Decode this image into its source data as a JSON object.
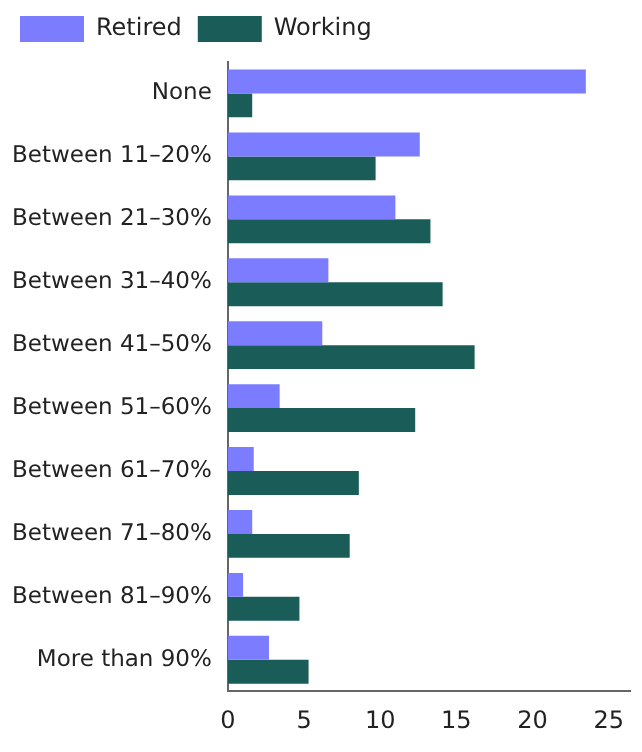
{
  "chart_data": {
    "type": "bar",
    "orientation": "horizontal",
    "categories": [
      "None",
      "Between 11–20%",
      "Between 21–30%",
      "Between 31–40%",
      "Between 41–50%",
      "Between 51–60%",
      "Between 61–70%",
      "Between 71–80%",
      "Between 81–90%",
      "More than 90%"
    ],
    "series": [
      {
        "name": "Retired",
        "color": "#7b7cff",
        "values": [
          23.5,
          12.6,
          11.0,
          6.6,
          6.2,
          3.4,
          1.7,
          1.6,
          1.0,
          2.7
        ]
      },
      {
        "name": "Working",
        "color": "#1a5c58",
        "values": [
          1.6,
          9.7,
          13.3,
          14.1,
          16.2,
          12.3,
          8.6,
          8.0,
          4.7,
          5.3
        ]
      }
    ],
    "xlim": [
      0,
      26.4
    ],
    "xticks": [
      0,
      5,
      10,
      15,
      20,
      25
    ],
    "grid": false,
    "legend": "top left"
  }
}
